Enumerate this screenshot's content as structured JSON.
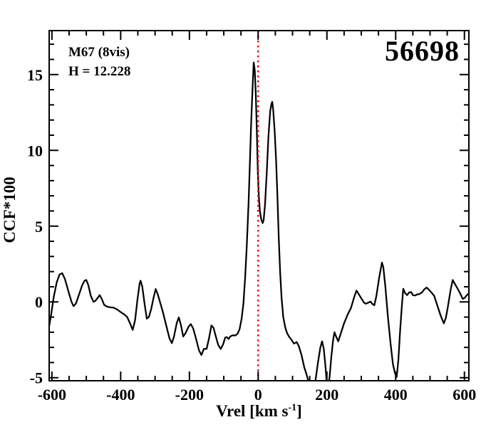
{
  "figure": {
    "annotations": {
      "cluster_label": "M67 (8vis)",
      "magnitude_label": "H = 12.228",
      "star_id": "56698"
    },
    "x_axis": {
      "title_main": "Vrel [km s",
      "title_sup": "-1",
      "title_close": "]"
    },
    "y_axis": {
      "title": "CCF*100"
    }
  },
  "chart_data": {
    "type": "line",
    "title": "",
    "xlabel": "Vrel [km s-1]",
    "ylabel": "CCF*100",
    "xlim": [
      -608,
      613
    ],
    "ylim": [
      -5.2,
      17.9
    ],
    "xticks": [
      -600,
      -400,
      -200,
      0,
      200,
      400,
      600
    ],
    "yticks": [
      -5,
      0,
      5,
      10,
      15
    ],
    "x_minor_step": 50,
    "y_minor_step": 1,
    "grid": false,
    "legend": null,
    "annotations": [
      "M67 (8vis)",
      "H = 12.228",
      "56698"
    ],
    "reference_line": {
      "x": 0,
      "style": "dotted",
      "color": "#ff0000"
    },
    "line_color": "#000000",
    "background": "#ffffff",
    "series": [
      {
        "name": "CCF",
        "x": [
          -608,
          -602,
          -595,
          -586,
          -578,
          -570,
          -562,
          -552,
          -543,
          -537,
          -530,
          -521,
          -512,
          -505,
          -500,
          -494,
          -487,
          -479,
          -473,
          -466,
          -461,
          -455,
          -448,
          -441,
          -432,
          -421,
          -410,
          -400,
          -390,
          -381,
          -372,
          -365,
          -358,
          -351,
          -345,
          -342,
          -337,
          -330,
          -324,
          -318,
          -311,
          -304,
          -298,
          -292,
          -285,
          -278,
          -268,
          -258,
          -251,
          -245,
          -237,
          -231,
          -225,
          -218,
          -211,
          -203,
          -196,
          -189,
          -180,
          -172,
          -165,
          -158,
          -150,
          -143,
          -136,
          -130,
          -123,
          -116,
          -109,
          -102,
          -96,
          -91,
          -86,
          -81,
          -74,
          -67,
          -60,
          -54,
          -48,
          -43,
          -38,
          -33,
          -28,
          -24,
          -20,
          -16,
          -13,
          -10,
          -7,
          -4,
          -1,
          2,
          5,
          9,
          13,
          16,
          20,
          25,
          30,
          35,
          39,
          41,
          44,
          48,
          52,
          56,
          60,
          64,
          68,
          73,
          79,
          84,
          90,
          97,
          104,
          112,
          118,
          126,
          134,
          141,
          147,
          152,
          158,
          163,
          168,
          174,
          181,
          186,
          191,
          196,
          200,
          204,
          208,
          213,
          218,
          222,
          227,
          233,
          240,
          250,
          260,
          270,
          279,
          286,
          293,
          301,
          308,
          313,
          320,
          327,
          333,
          338,
          344,
          352,
          360,
          364,
          370,
          377,
          385,
          392,
          398,
          403,
          408,
          413,
          418,
          422,
          427,
          433,
          439,
          445,
          450,
          457,
          463,
          469,
          476,
          483,
          490,
          497,
          505,
          512,
          520,
          530,
          540,
          546,
          552,
          560,
          566,
          572,
          580,
          588,
          595,
          601,
          607,
          613
        ],
        "y": [
          -1.6,
          -0.8,
          0.3,
          1.3,
          1.8,
          1.9,
          1.5,
          0.7,
          0.0,
          -0.28,
          -0.1,
          0.5,
          1.1,
          1.4,
          1.45,
          1.1,
          0.4,
          0.0,
          0.08,
          0.3,
          0.45,
          0.2,
          -0.2,
          -0.3,
          -0.35,
          -0.38,
          -0.5,
          -0.67,
          -0.82,
          -1.0,
          -1.45,
          -1.85,
          -1.2,
          0.2,
          1.2,
          1.4,
          1.0,
          -0.2,
          -1.1,
          -1.0,
          -0.45,
          0.3,
          0.85,
          0.5,
          -0.05,
          -0.6,
          -1.5,
          -2.4,
          -2.72,
          -2.3,
          -1.4,
          -1.02,
          -1.5,
          -2.28,
          -2.05,
          -1.65,
          -1.46,
          -1.75,
          -2.5,
          -3.2,
          -3.5,
          -3.1,
          -3.1,
          -2.4,
          -1.55,
          -1.7,
          -2.3,
          -2.85,
          -3.1,
          -2.8,
          -2.35,
          -2.32,
          -2.45,
          -2.28,
          -2.2,
          -2.22,
          -2.1,
          -1.8,
          -1.1,
          -0.1,
          1.6,
          3.8,
          6.5,
          9.2,
          12.0,
          14.3,
          15.8,
          15.3,
          13.8,
          11.3,
          8.6,
          6.9,
          6.0,
          5.45,
          5.2,
          5.4,
          6.4,
          8.6,
          11.0,
          12.6,
          13.1,
          13.2,
          12.6,
          11.3,
          9.4,
          7.0,
          4.2,
          1.9,
          0.3,
          -1.0,
          -1.7,
          -2.05,
          -2.3,
          -2.5,
          -2.75,
          -2.65,
          -2.9,
          -3.5,
          -4.3,
          -4.8,
          -5.3,
          -6.1,
          -6.3,
          -5.7,
          -5.0,
          -4.0,
          -3.0,
          -2.6,
          -3.1,
          -4.3,
          -5.5,
          -5.7,
          -4.9,
          -3.6,
          -2.5,
          -2.0,
          -2.3,
          -2.6,
          -2.1,
          -1.4,
          -0.85,
          -0.4,
          0.3,
          0.75,
          0.5,
          0.2,
          -0.05,
          -0.12,
          -0.05,
          0.02,
          -0.15,
          -0.22,
          0.4,
          1.6,
          2.6,
          2.3,
          1.0,
          -0.9,
          -2.7,
          -4.1,
          -4.7,
          -4.95,
          -3.8,
          -1.9,
          -0.3,
          0.87,
          0.6,
          0.45,
          0.62,
          0.65,
          0.45,
          0.42,
          0.5,
          0.52,
          0.62,
          0.82,
          0.95,
          0.8,
          0.6,
          0.4,
          -0.15,
          -0.85,
          -1.42,
          -1.05,
          -0.3,
          0.8,
          1.45,
          1.2,
          0.88,
          0.55,
          0.2,
          0.27,
          0.45,
          0.55
        ]
      }
    ]
  }
}
